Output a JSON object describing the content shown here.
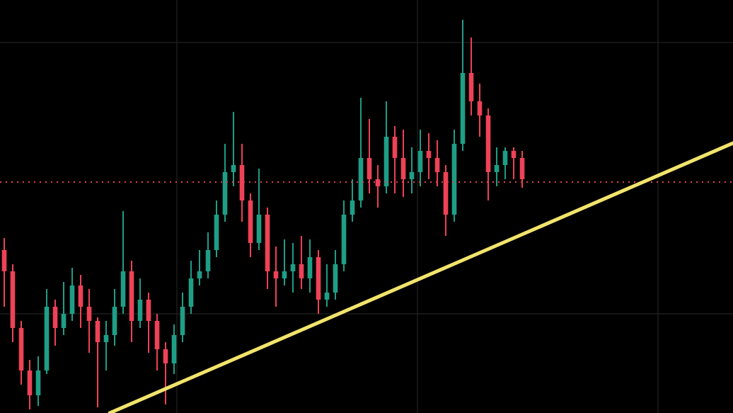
{
  "chart_data": {
    "type": "candlestick",
    "open": [
      230,
      200,
      120,
      60,
      25,
      60,
      150,
      120,
      140,
      180,
      150,
      130,
      100,
      110,
      150,
      200,
      130,
      160,
      130,
      90,
      70,
      110,
      150,
      190,
      200,
      230,
      280,
      340,
      350,
      300,
      240,
      280,
      200,
      190,
      200,
      210,
      190,
      220,
      160,
      170,
      210,
      280,
      300,
      360,
      330,
      320,
      390,
      360,
      330,
      340,
      370,
      360,
      340,
      280,
      380,
      480,
      440,
      420,
      340,
      350,
      370,
      360
    ],
    "high": [
      247,
      210,
      130,
      75,
      80,
      175,
      160,
      185,
      205,
      195,
      175,
      135,
      130,
      175,
      285,
      215,
      190,
      170,
      140,
      100,
      125,
      170,
      215,
      230,
      255,
      300,
      380,
      425,
      380,
      310,
      345,
      290,
      235,
      245,
      240,
      250,
      245,
      230,
      210,
      230,
      300,
      330,
      445,
      415,
      350,
      440,
      405,
      400,
      375,
      400,
      395,
      385,
      350,
      400,
      555,
      530,
      465,
      430,
      375,
      375,
      375,
      370
    ],
    "low": [
      150,
      100,
      40,
      5,
      10,
      55,
      95,
      110,
      130,
      120,
      85,
      8,
      60,
      95,
      140,
      100,
      120,
      85,
      60,
      12,
      55,
      100,
      140,
      180,
      190,
      220,
      270,
      320,
      270,
      220,
      230,
      175,
      150,
      180,
      170,
      175,
      170,
      140,
      150,
      160,
      200,
      270,
      290,
      310,
      290,
      310,
      310,
      305,
      310,
      320,
      330,
      320,
      250,
      270,
      370,
      420,
      390,
      300,
      320,
      330,
      330,
      318
    ],
    "close": [
      200,
      120,
      60,
      25,
      60,
      150,
      120,
      140,
      180,
      150,
      130,
      100,
      110,
      150,
      200,
      130,
      160,
      130,
      90,
      70,
      110,
      150,
      190,
      200,
      230,
      280,
      340,
      350,
      300,
      240,
      280,
      200,
      190,
      200,
      210,
      190,
      220,
      160,
      170,
      210,
      280,
      300,
      360,
      330,
      320,
      390,
      360,
      330,
      340,
      370,
      360,
      340,
      280,
      380,
      480,
      440,
      420,
      340,
      350,
      370,
      360,
      330
    ],
    "up_color": "#1f9e86",
    "down_color": "#ee4257",
    "xlim": [
      -0.5,
      85.83
    ],
    "ylim": [
      0,
      583
    ],
    "price_line": {
      "value": 326,
      "color": "#e0404f"
    },
    "trendline": {
      "x": [
        12.42,
        85.83
      ],
      "y": [
        0,
        381
      ],
      "color": "#f2e46c"
    }
  }
}
